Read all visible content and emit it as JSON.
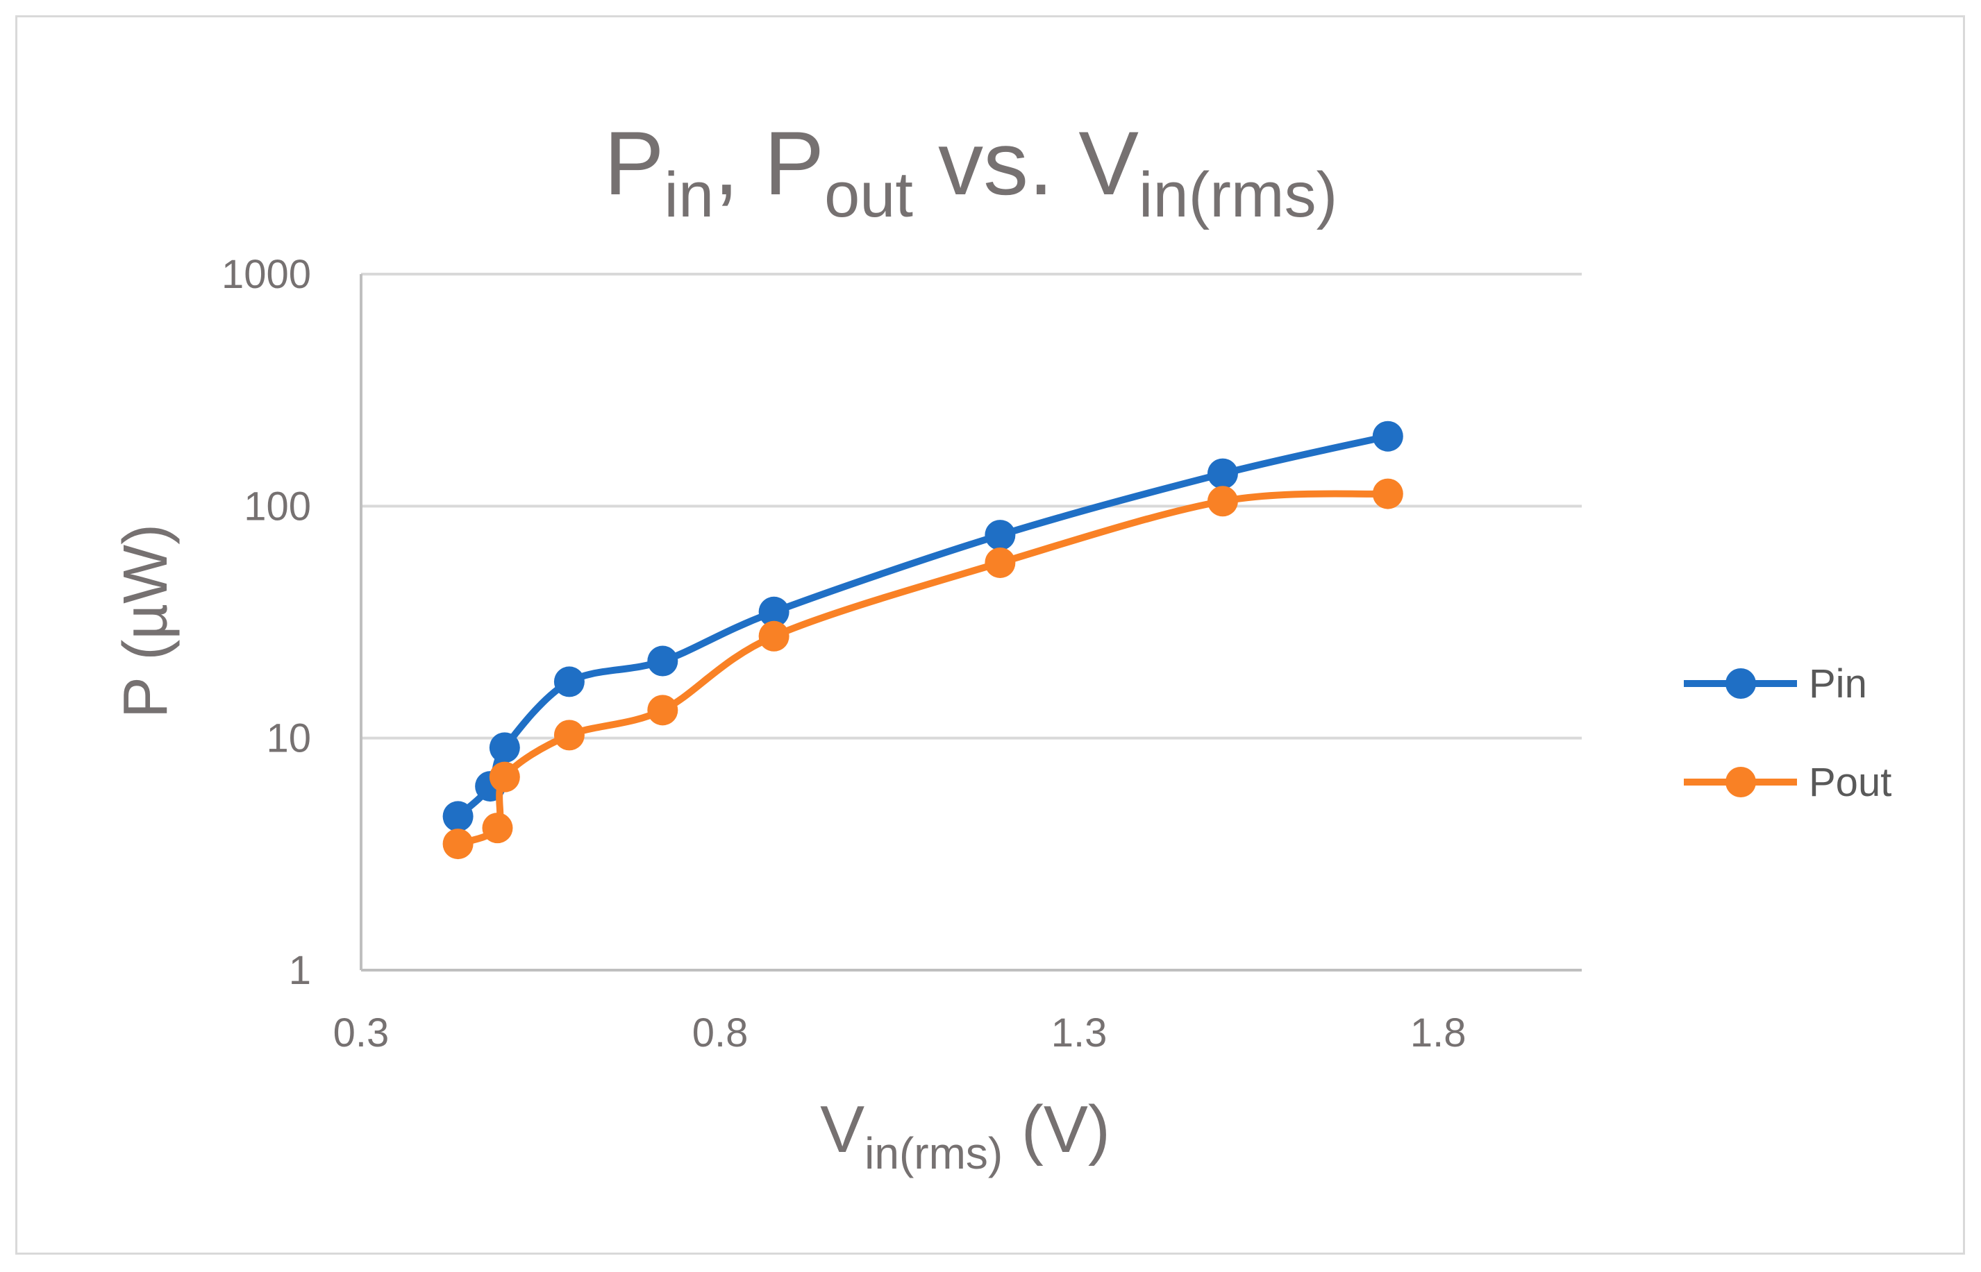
{
  "chart_data": {
    "type": "line",
    "title": {
      "main": "P",
      "sub1": "in",
      "sep": ", P",
      "sub2": "out",
      "mid": " vs. V",
      "sub3": "in(rms)"
    },
    "xlabel": {
      "main": "V",
      "sub": "in(rms)",
      "unit": " (V)"
    },
    "ylabel": "P (µW)",
    "y_scale": "log",
    "xlim": [
      0.3,
      2.0
    ],
    "ylim": [
      1,
      1000
    ],
    "x_ticks": [
      0.3,
      0.8,
      1.3,
      1.8
    ],
    "x_tick_labels": [
      "0.3",
      "0.8",
      "1.3",
      "1.8"
    ],
    "y_ticks": [
      1,
      10,
      100,
      1000
    ],
    "y_tick_labels": [
      "1",
      "10",
      "100",
      "1000"
    ],
    "grid": "horizontal",
    "legend_position": "right",
    "series": [
      {
        "name": "Pin",
        "color": "#1f6fc5",
        "x": [
          0.435,
          0.48,
          0.5,
          0.59,
          0.72,
          0.875,
          1.19,
          1.5,
          1.73
        ],
        "y": [
          4.6,
          6.2,
          9.1,
          17.5,
          21.5,
          35,
          75,
          138,
          200
        ]
      },
      {
        "name": "Pout",
        "color": "#f98125",
        "x": [
          0.435,
          0.49,
          0.5,
          0.59,
          0.72,
          0.875,
          1.19,
          1.5,
          1.73
        ],
        "y": [
          3.5,
          4.1,
          6.8,
          10.3,
          13.2,
          27.5,
          57,
          105,
          113
        ]
      }
    ]
  }
}
